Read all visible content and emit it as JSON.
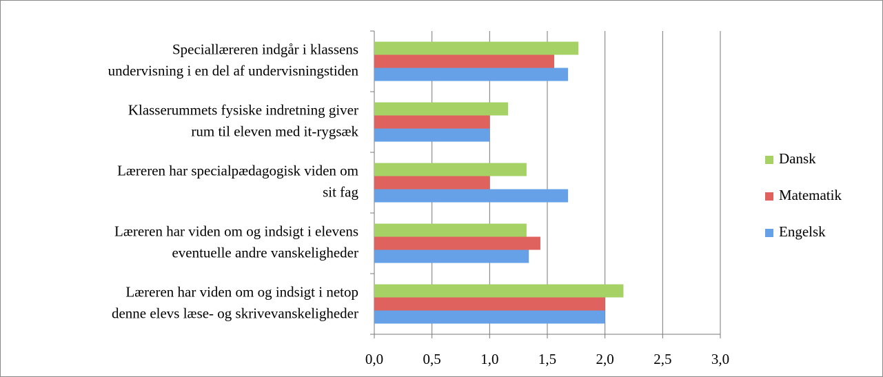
{
  "chart_data": {
    "type": "bar",
    "orientation": "horizontal",
    "categories": [
      [
        "Speciallæreren indgår i klassens",
        "undervisning i en del af undervisningstiden"
      ],
      [
        "Klasserummets fysiske indretning giver",
        "rum til eleven med it-rygsæk"
      ],
      [
        "Læreren har specialpædagogisk viden om",
        "sit fag"
      ],
      [
        "Læreren har viden om og indsigt i elevens",
        "eventuelle andre vanskeligheder"
      ],
      [
        "Læreren har viden om og indsigt i netop",
        "denne elevs læse- og skrivevanskeligheder"
      ]
    ],
    "series": [
      {
        "name": "Dansk",
        "color": "#a6d165",
        "values": [
          1.77,
          1.16,
          1.32,
          1.32,
          2.16
        ]
      },
      {
        "name": "Matematik",
        "color": "#e0625f",
        "values": [
          1.56,
          1.0,
          1.0,
          1.44,
          2.0
        ]
      },
      {
        "name": "Engelsk",
        "color": "#66a0e6",
        "values": [
          1.68,
          1.0,
          1.68,
          1.34,
          2.0
        ]
      }
    ],
    "xlim": [
      0,
      3
    ],
    "xticks": [
      {
        "value": 0,
        "label": "0,0"
      },
      {
        "value": 0.5,
        "label": "0,5"
      },
      {
        "value": 1,
        "label": "1,0"
      },
      {
        "value": 1.5,
        "label": "1,5"
      },
      {
        "value": 2,
        "label": "2,0"
      },
      {
        "value": 2.5,
        "label": "2,5"
      },
      {
        "value": 3,
        "label": "3,0"
      }
    ],
    "grid": true,
    "legend": "right"
  }
}
